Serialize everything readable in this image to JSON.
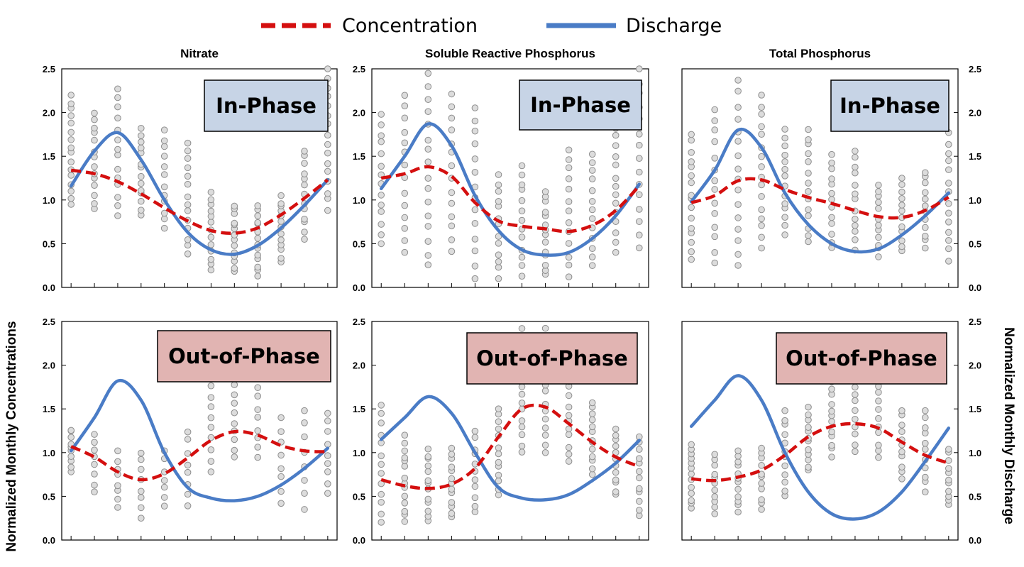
{
  "legend": {
    "concentration": "Concentration",
    "discharge": "Discharge"
  },
  "y_axis_left_label": "Normalized Monthly Concentrations",
  "y_axis_right_label": "Normalized Monthly Discharge",
  "colors": {
    "concentration": "#d40f0f",
    "discharge": "#4a7cc6",
    "points_fill": "#dcdcdc",
    "points_stroke": "#8e8e8e",
    "in_phase_badge": "#c7d4e6",
    "out_phase_badge": "#e1b4b2"
  },
  "chart_data": [
    {
      "type": "scatter",
      "title": "Nitrate",
      "phase_label": "In-Phase",
      "ylim": [
        0,
        2.5
      ],
      "yticks": [
        "0.0",
        "0.5",
        "1.0",
        "1.5",
        "2.0",
        "2.5"
      ],
      "x": [
        0,
        1,
        2,
        3,
        4,
        5,
        6,
        7,
        8,
        9,
        10,
        11
      ],
      "series": [
        {
          "name": "Concentration",
          "values": [
            1.34,
            1.3,
            1.21,
            1.07,
            0.91,
            0.76,
            0.65,
            0.62,
            0.68,
            0.83,
            1.02,
            1.23
          ]
        },
        {
          "name": "Discharge",
          "values": [
            1.16,
            1.56,
            1.77,
            1.46,
            1.0,
            0.63,
            0.43,
            0.38,
            0.48,
            0.68,
            0.94,
            1.23
          ]
        }
      ],
      "points_per_month": [
        {
          "min": 0.95,
          "max": 2.2,
          "n": 16
        },
        {
          "min": 0.9,
          "max": 2.0,
          "n": 14
        },
        {
          "min": 0.82,
          "max": 2.27,
          "n": 14
        },
        {
          "min": 0.82,
          "max": 1.82,
          "n": 14
        },
        {
          "min": 0.65,
          "max": 1.8,
          "n": 12
        },
        {
          "min": 0.37,
          "max": 1.65,
          "n": 14
        },
        {
          "min": 0.2,
          "max": 1.1,
          "n": 13
        },
        {
          "min": 0.18,
          "max": 0.93,
          "n": 14
        },
        {
          "min": 0.13,
          "max": 0.95,
          "n": 14
        },
        {
          "min": 0.28,
          "max": 1.05,
          "n": 13
        },
        {
          "min": 0.55,
          "max": 1.58,
          "n": 13
        },
        {
          "min": 0.88,
          "max": 2.5,
          "n": 16
        }
      ]
    },
    {
      "type": "scatter",
      "title": "Soluble Reactive Phosphorus",
      "phase_label": "In-Phase",
      "ylim": [
        0,
        2.5
      ],
      "yticks": [
        "0.0",
        "0.5",
        "1.0",
        "1.5",
        "2.0",
        "2.5"
      ],
      "x": [
        0,
        1,
        2,
        3,
        4,
        5,
        6,
        7,
        8,
        9,
        10,
        11
      ],
      "series": [
        {
          "name": "Concentration",
          "values": [
            1.25,
            1.3,
            1.38,
            1.27,
            0.97,
            0.76,
            0.7,
            0.67,
            0.64,
            0.71,
            0.88,
            1.16
          ]
        },
        {
          "name": "Discharge",
          "values": [
            1.13,
            1.5,
            1.87,
            1.62,
            1.05,
            0.65,
            0.43,
            0.37,
            0.4,
            0.56,
            0.82,
            1.18
          ]
        }
      ],
      "points_per_month": [
        {
          "min": 0.5,
          "max": 1.98,
          "n": 14
        },
        {
          "min": 0.4,
          "max": 2.22,
          "n": 14
        },
        {
          "min": 0.23,
          "max": 2.45,
          "n": 16
        },
        {
          "min": 0.4,
          "max": 2.22,
          "n": 14
        },
        {
          "min": 0.1,
          "max": 2.08,
          "n": 14
        },
        {
          "min": 0.1,
          "max": 1.3,
          "n": 13
        },
        {
          "min": 0.12,
          "max": 1.42,
          "n": 13
        },
        {
          "min": 0.12,
          "max": 1.12,
          "n": 14
        },
        {
          "min": 0.12,
          "max": 1.6,
          "n": 13
        },
        {
          "min": 0.25,
          "max": 1.55,
          "n": 13
        },
        {
          "min": 0.4,
          "max": 1.82,
          "n": 14
        },
        {
          "min": 0.45,
          "max": 2.5,
          "n": 15
        }
      ]
    },
    {
      "type": "scatter",
      "title": "Total Phosphorus",
      "phase_label": "In-Phase",
      "ylim": [
        0,
        2.5
      ],
      "yticks": [
        "0.0",
        "0.5",
        "1.0",
        "1.5",
        "2.0",
        "2.5"
      ],
      "x": [
        0,
        1,
        2,
        3,
        4,
        5,
        6,
        7,
        8,
        9,
        10,
        11
      ],
      "series": [
        {
          "name": "Concentration",
          "values": [
            0.97,
            1.05,
            1.22,
            1.23,
            1.12,
            1.03,
            0.96,
            0.88,
            0.81,
            0.8,
            0.88,
            1.03
          ]
        },
        {
          "name": "Discharge",
          "values": [
            0.98,
            1.34,
            1.8,
            1.6,
            1.08,
            0.72,
            0.5,
            0.41,
            0.44,
            0.6,
            0.82,
            1.08
          ]
        }
      ],
      "points_per_month": [
        {
          "min": 0.32,
          "max": 1.75,
          "n": 16
        },
        {
          "min": 0.28,
          "max": 2.05,
          "n": 14
        },
        {
          "min": 0.25,
          "max": 2.37,
          "n": 16
        },
        {
          "min": 0.45,
          "max": 2.2,
          "n": 16
        },
        {
          "min": 0.6,
          "max": 1.82,
          "n": 14
        },
        {
          "min": 0.5,
          "max": 1.82,
          "n": 14
        },
        {
          "min": 0.45,
          "max": 1.52,
          "n": 13
        },
        {
          "min": 0.42,
          "max": 1.58,
          "n": 13
        },
        {
          "min": 0.35,
          "max": 1.18,
          "n": 12
        },
        {
          "min": 0.4,
          "max": 1.25,
          "n": 12
        },
        {
          "min": 0.45,
          "max": 1.33,
          "n": 12
        },
        {
          "min": 0.3,
          "max": 1.77,
          "n": 14
        }
      ]
    },
    {
      "type": "scatter",
      "title": "",
      "phase_label": "Out-of-Phase",
      "ylim": [
        0,
        2.5
      ],
      "yticks": [
        "0.0",
        "0.5",
        "1.0",
        "1.5",
        "2.0",
        "2.5"
      ],
      "x": [
        0,
        1,
        2,
        3,
        4,
        5,
        6,
        7,
        8,
        9,
        10,
        11
      ],
      "series": [
        {
          "name": "Concentration",
          "values": [
            1.07,
            0.95,
            0.78,
            0.69,
            0.76,
            0.94,
            1.14,
            1.24,
            1.2,
            1.08,
            1.02,
            1.01
          ]
        },
        {
          "name": "Discharge",
          "values": [
            1.02,
            1.4,
            1.82,
            1.6,
            1.0,
            0.6,
            0.48,
            0.45,
            0.5,
            0.63,
            0.82,
            1.05
          ]
        }
      ],
      "points_per_month": [
        {
          "min": 0.78,
          "max": 1.28,
          "n": 10
        },
        {
          "min": 0.55,
          "max": 1.22,
          "n": 8
        },
        {
          "min": 0.35,
          "max": 1.02,
          "n": 8
        },
        {
          "min": 0.25,
          "max": 1.02,
          "n": 8
        },
        {
          "min": 0.38,
          "max": 1.02,
          "n": 7
        },
        {
          "min": 0.38,
          "max": 1.25,
          "n": 8
        },
        {
          "min": 0.78,
          "max": 1.78,
          "n": 9
        },
        {
          "min": 0.95,
          "max": 1.95,
          "n": 11
        },
        {
          "min": 0.92,
          "max": 2.0,
          "n": 10
        },
        {
          "min": 0.42,
          "max": 1.4,
          "n": 8
        },
        {
          "min": 0.35,
          "max": 1.48,
          "n": 8
        },
        {
          "min": 0.52,
          "max": 1.45,
          "n": 9
        }
      ]
    },
    {
      "type": "scatter",
      "title": "",
      "phase_label": "Out-of-Phase",
      "ylim": [
        0,
        2.5
      ],
      "yticks": [
        "0.0",
        "0.5",
        "1.0",
        "1.5",
        "2.0",
        "2.5"
      ],
      "x": [
        0,
        1,
        2,
        3,
        4,
        5,
        6,
        7,
        8,
        9,
        10,
        11
      ],
      "series": [
        {
          "name": "Concentration",
          "values": [
            0.69,
            0.62,
            0.59,
            0.64,
            0.82,
            1.18,
            1.5,
            1.52,
            1.33,
            1.12,
            0.95,
            0.84
          ]
        },
        {
          "name": "Discharge",
          "values": [
            1.15,
            1.4,
            1.64,
            1.45,
            1.0,
            0.6,
            0.48,
            0.46,
            0.52,
            0.68,
            0.88,
            1.14
          ]
        }
      ],
      "points_per_month": [
        {
          "min": 0.18,
          "max": 1.55,
          "n": 13
        },
        {
          "min": 0.2,
          "max": 1.2,
          "n": 14
        },
        {
          "min": 0.22,
          "max": 1.05,
          "n": 13
        },
        {
          "min": 0.25,
          "max": 1.05,
          "n": 13
        },
        {
          "min": 0.3,
          "max": 1.25,
          "n": 11
        },
        {
          "min": 0.5,
          "max": 1.5,
          "n": 13
        },
        {
          "min": 1.0,
          "max": 2.42,
          "n": 16
        },
        {
          "min": 1.0,
          "max": 2.45,
          "n": 16
        },
        {
          "min": 0.9,
          "max": 2.1,
          "n": 14
        },
        {
          "min": 0.75,
          "max": 1.58,
          "n": 13
        },
        {
          "min": 0.5,
          "max": 1.27,
          "n": 12
        },
        {
          "min": 0.28,
          "max": 1.18,
          "n": 12
        }
      ]
    },
    {
      "type": "scatter",
      "title": "",
      "phase_label": "Out-of-Phase",
      "ylim": [
        0,
        2.5
      ],
      "yticks": [
        "0.0",
        "0.5",
        "1.0",
        "1.5",
        "2.0",
        "2.5"
      ],
      "x": [
        0,
        1,
        2,
        3,
        4,
        5,
        6,
        7,
        8,
        9,
        10,
        11
      ],
      "series": [
        {
          "name": "Concentration",
          "values": [
            0.7,
            0.68,
            0.72,
            0.8,
            0.97,
            1.18,
            1.3,
            1.33,
            1.28,
            1.12,
            0.97,
            0.88
          ]
        },
        {
          "name": "Discharge",
          "values": [
            1.3,
            1.6,
            1.88,
            1.6,
            1.0,
            0.55,
            0.3,
            0.24,
            0.32,
            0.55,
            0.9,
            1.28
          ]
        }
      ],
      "points_per_month": [
        {
          "min": 0.35,
          "max": 1.12,
          "n": 13
        },
        {
          "min": 0.3,
          "max": 0.98,
          "n": 11
        },
        {
          "min": 0.32,
          "max": 1.02,
          "n": 12
        },
        {
          "min": 0.35,
          "max": 1.05,
          "n": 11
        },
        {
          "min": 0.5,
          "max": 1.48,
          "n": 12
        },
        {
          "min": 0.78,
          "max": 1.52,
          "n": 12
        },
        {
          "min": 0.95,
          "max": 1.95,
          "n": 14
        },
        {
          "min": 1.0,
          "max": 2.25,
          "n": 14
        },
        {
          "min": 0.92,
          "max": 1.98,
          "n": 12
        },
        {
          "min": 0.7,
          "max": 1.48,
          "n": 11
        },
        {
          "min": 0.55,
          "max": 1.48,
          "n": 11
        },
        {
          "min": 0.38,
          "max": 1.05,
          "n": 11
        }
      ]
    }
  ]
}
